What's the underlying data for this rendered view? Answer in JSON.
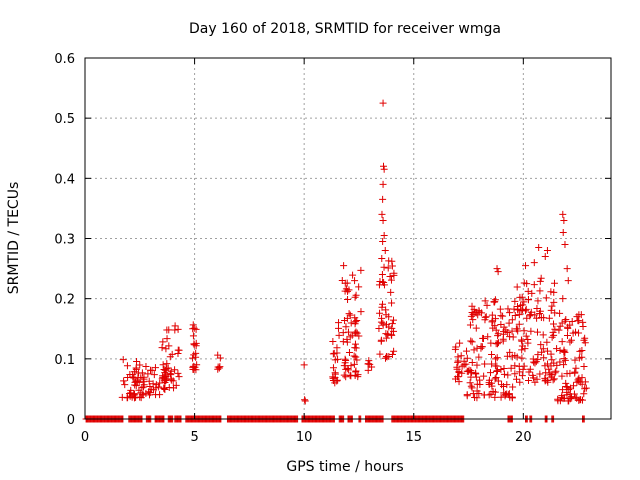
{
  "chart_data": {
    "type": "scatter",
    "title": "Day 160 of 2018, SRMTID for receiver wmga",
    "xlabel": "GPS time / hours",
    "ylabel": "SRMTID / TECUs",
    "xlim": [
      0,
      24
    ],
    "ylim": [
      0,
      0.6
    ],
    "x_ticks": [
      0,
      5,
      10,
      15,
      20
    ],
    "x_tick_labels": [
      "0",
      "5",
      "10",
      "15",
      "20"
    ],
    "y_ticks": [
      0,
      0.1,
      0.2,
      0.3,
      0.4,
      0.5,
      0.6
    ],
    "y_tick_labels": [
      "0",
      "0.1",
      "0.2",
      "0.3",
      "0.4",
      "0.5",
      "0.6"
    ],
    "grid": true,
    "marker": "+",
    "color": "#e00000",
    "zero_value_intervals": [
      [
        0.05,
        1.75
      ],
      [
        2.0,
        2.6
      ],
      [
        2.8,
        3.0
      ],
      [
        3.2,
        3.6
      ],
      [
        3.8,
        4.0
      ],
      [
        4.1,
        4.4
      ],
      [
        4.6,
        6.2
      ],
      [
        6.5,
        9.7
      ],
      [
        9.9,
        11.4
      ],
      [
        11.6,
        11.8
      ],
      [
        12.0,
        12.2
      ],
      [
        12.5,
        12.6
      ],
      [
        12.8,
        13.6
      ],
      [
        14.0,
        17.3
      ],
      [
        19.3,
        19.5
      ],
      [
        20.1,
        20.2
      ],
      [
        20.3,
        20.4
      ],
      [
        21.0,
        21.1
      ],
      [
        21.3,
        21.4
      ],
      [
        22.7,
        22.8
      ]
    ],
    "clusters": [
      {
        "x_start": 1.7,
        "x_end": 2.7,
        "y_min": 0.035,
        "y_max": 0.1,
        "n": 45
      },
      {
        "x_start": 2.6,
        "x_end": 3.7,
        "y_min": 0.04,
        "y_max": 0.09,
        "n": 35
      },
      {
        "x_start": 3.5,
        "x_end": 4.3,
        "y_min": 0.05,
        "y_max": 0.155,
        "n": 40
      },
      {
        "x_start": 4.9,
        "x_end": 5.1,
        "y_min": 0.08,
        "y_max": 0.17,
        "n": 20
      },
      {
        "x_start": 6.05,
        "x_end": 6.2,
        "y_min": 0.08,
        "y_max": 0.115,
        "n": 6
      },
      {
        "x_start": 11.3,
        "x_end": 11.6,
        "y_min": 0.06,
        "y_max": 0.17,
        "n": 20
      },
      {
        "x_start": 11.7,
        "x_end": 12.6,
        "y_min": 0.07,
        "y_max": 0.25,
        "n": 60
      },
      {
        "x_start": 12.9,
        "x_end": 13.1,
        "y_min": 0.08,
        "y_max": 0.1,
        "n": 6
      },
      {
        "x_start": 13.4,
        "x_end": 14.1,
        "y_min": 0.1,
        "y_max": 0.27,
        "n": 50
      },
      {
        "x_start": 16.9,
        "x_end": 17.4,
        "y_min": 0.06,
        "y_max": 0.13,
        "n": 20
      },
      {
        "x_start": 17.4,
        "x_end": 19.6,
        "y_min": 0.035,
        "y_max": 0.2,
        "n": 140
      },
      {
        "x_start": 19.6,
        "x_end": 21.5,
        "y_min": 0.06,
        "y_max": 0.24,
        "n": 120
      },
      {
        "x_start": 21.5,
        "x_end": 22.9,
        "y_min": 0.03,
        "y_max": 0.18,
        "n": 90
      }
    ],
    "points": [
      {
        "x": 13.6,
        "y": 0.525
      },
      {
        "x": 13.62,
        "y": 0.42
      },
      {
        "x": 13.65,
        "y": 0.415
      },
      {
        "x": 13.6,
        "y": 0.39
      },
      {
        "x": 13.58,
        "y": 0.365
      },
      {
        "x": 13.55,
        "y": 0.34
      },
      {
        "x": 13.6,
        "y": 0.33
      },
      {
        "x": 13.65,
        "y": 0.305
      },
      {
        "x": 13.58,
        "y": 0.295
      },
      {
        "x": 13.7,
        "y": 0.28
      },
      {
        "x": 10.0,
        "y": 0.09
      },
      {
        "x": 10.02,
        "y": 0.032
      },
      {
        "x": 10.05,
        "y": 0.03
      },
      {
        "x": 11.8,
        "y": 0.255
      },
      {
        "x": 12.3,
        "y": 0.23
      },
      {
        "x": 18.8,
        "y": 0.25
      },
      {
        "x": 18.85,
        "y": 0.245
      },
      {
        "x": 20.1,
        "y": 0.255
      },
      {
        "x": 20.5,
        "y": 0.26
      },
      {
        "x": 20.7,
        "y": 0.285
      },
      {
        "x": 21.1,
        "y": 0.28
      },
      {
        "x": 21.0,
        "y": 0.27
      },
      {
        "x": 21.8,
        "y": 0.34
      },
      {
        "x": 21.85,
        "y": 0.33
      },
      {
        "x": 21.82,
        "y": 0.31
      },
      {
        "x": 21.9,
        "y": 0.29
      },
      {
        "x": 22.0,
        "y": 0.25
      },
      {
        "x": 22.05,
        "y": 0.23
      },
      {
        "x": 21.8,
        "y": 0.2
      },
      {
        "x": 19.5,
        "y": 0.165
      },
      {
        "x": 19.9,
        "y": 0.18
      }
    ]
  }
}
